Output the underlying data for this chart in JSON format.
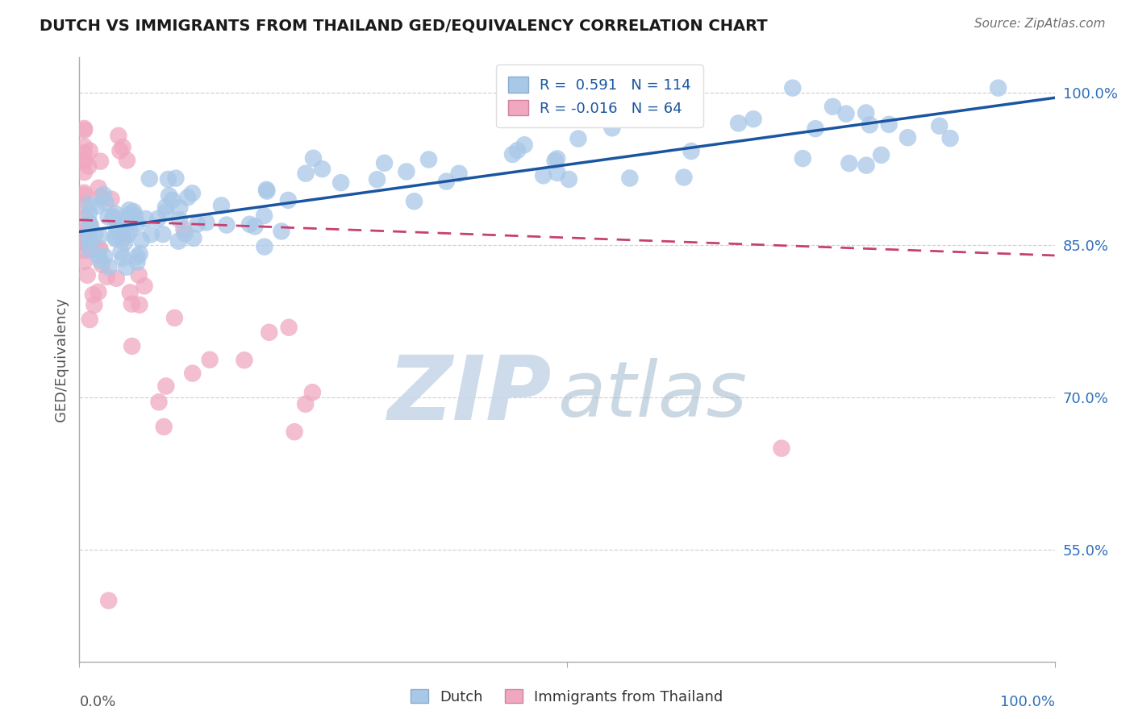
{
  "title": "DUTCH VS IMMIGRANTS FROM THAILAND GED/EQUIVALENCY CORRELATION CHART",
  "source": "Source: ZipAtlas.com",
  "ylabel": "GED/Equivalency",
  "xlim": [
    0.0,
    1.0
  ],
  "ylim": [
    0.44,
    1.035
  ],
  "right_ytick_labels": [
    "100.0%",
    "85.0%",
    "70.0%",
    "55.0%"
  ],
  "right_yticks": [
    1.0,
    0.85,
    0.7,
    0.55
  ],
  "x_bottom_labels": [
    "0.0%",
    "100.0%"
  ],
  "dutch_R": 0.591,
  "dutch_N": 114,
  "thai_R": -0.016,
  "thai_N": 64,
  "dutch_color": "#a8c8e8",
  "dutch_line_color": "#1a55a0",
  "thai_color": "#f0a8c0",
  "thai_line_color": "#c84070",
  "background_color": "#ffffff",
  "grid_color": "#cccccc",
  "watermark_zip_color": "#c8d8e8",
  "watermark_atlas_color": "#a0b8cc",
  "legend_R_color": "#1a55a0",
  "bottom_legend_dutch": "Dutch",
  "bottom_legend_thai": "Immigrants from Thailand",
  "title_fontsize": 14,
  "source_fontsize": 11,
  "tick_label_fontsize": 13,
  "legend_fontsize": 13
}
